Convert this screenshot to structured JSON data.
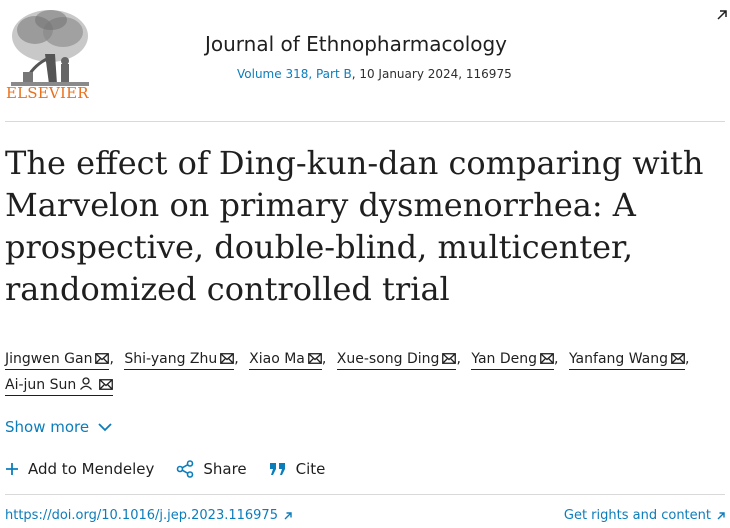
{
  "header": {
    "publisher": "ELSEVIER",
    "journal": "Journal of Ethnopharmacology",
    "volume": "Volume 318, Part B",
    "issue_details": ", 10 January 2024, 116975"
  },
  "article": {
    "title": "The effect of Ding-kun-dan comparing with Marvelon on primary dysmenorrhea: A prospective, double-blind, multicenter, randomized controlled trial",
    "authors": [
      "Jingwen Gan",
      "Shi-yang Zhu",
      "Xiao Ma",
      "Xue-song Ding",
      "Yan Deng",
      "Yanfang Wang",
      "Ai-jun Sun"
    ]
  },
  "show_more": "Show more",
  "actions": {
    "mendeley": "Add to Mendeley",
    "share": "Share",
    "cite": "Cite"
  },
  "footer": {
    "doi": "https://doi.org/10.1016/j.jep.2023.116975",
    "rights": "Get rights and content"
  },
  "colors": {
    "link": "#0c7dbb",
    "publisher": "#e9711c",
    "text": "#1f1f1f"
  }
}
